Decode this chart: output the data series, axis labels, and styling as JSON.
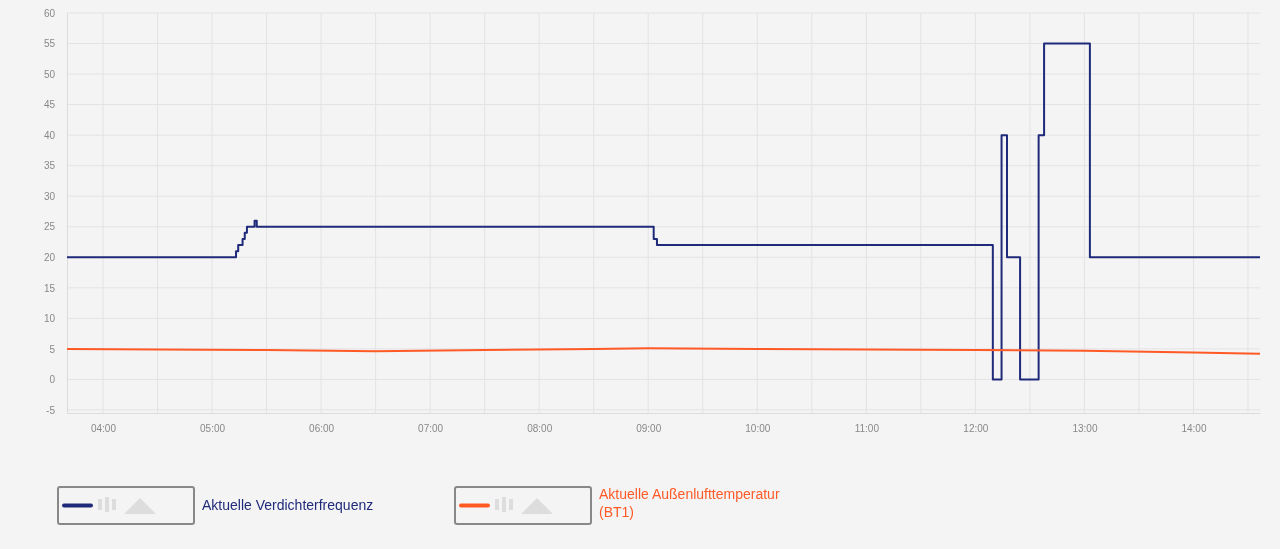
{
  "chart_data": {
    "type": "step",
    "xlim": [
      3.67,
      14.61
    ],
    "xticks": [
      {
        "value": 4,
        "label": "04:00"
      },
      {
        "value": 4.5,
        "label": null
      },
      {
        "value": 5,
        "label": "05:00"
      },
      {
        "value": 5.5,
        "label": null
      },
      {
        "value": 6,
        "label": "06:00"
      },
      {
        "value": 6.5,
        "label": null
      },
      {
        "value": 7,
        "label": "07:00"
      },
      {
        "value": 7.5,
        "label": null
      },
      {
        "value": 8,
        "label": "08:00"
      },
      {
        "value": 8.5,
        "label": null
      },
      {
        "value": 9,
        "label": "09:00"
      },
      {
        "value": 9.5,
        "label": null
      },
      {
        "value": 10,
        "label": "10:00"
      },
      {
        "value": 10.5,
        "label": null
      },
      {
        "value": 11,
        "label": "11:00"
      },
      {
        "value": 11.5,
        "label": null
      },
      {
        "value": 12,
        "label": "12:00"
      },
      {
        "value": 12.5,
        "label": null
      },
      {
        "value": 13,
        "label": "13:00"
      },
      {
        "value": 13.5,
        "label": null
      },
      {
        "value": 14,
        "label": "14:00"
      },
      {
        "value": 14.5,
        "label": null
      }
    ],
    "ylim": [
      -5.5,
      60
    ],
    "yticks": [
      -5,
      0,
      5,
      10,
      15,
      20,
      25,
      30,
      35,
      40,
      45,
      50,
      55,
      60
    ],
    "grid": true,
    "legend": "bottom left",
    "series": [
      {
        "name": "Aktuelle Verdichterfrequenz",
        "color": "#1f2a7a",
        "x": [
          3.67,
          5.22,
          5.24,
          5.28,
          5.3,
          5.32,
          5.39,
          5.41,
          9.05,
          9.08,
          12.16,
          12.24,
          12.29,
          12.41,
          12.58,
          12.63,
          13.05,
          14.61
        ],
        "values": [
          20,
          21,
          22,
          23,
          24,
          25,
          26,
          25,
          23,
          22,
          0,
          40,
          20,
          0,
          40,
          55,
          20,
          20
        ]
      },
      {
        "name": "Aktuelle Außenlufttemperatur (BT1)",
        "type": "line",
        "color": "#ff5a26",
        "x": [
          3.67,
          4.5,
          5.5,
          6.5,
          7.5,
          8.5,
          9.0,
          10.0,
          11.0,
          12.0,
          13.0,
          14.0,
          14.61
        ],
        "values": [
          5.0,
          4.9,
          4.8,
          4.6,
          4.8,
          5.0,
          5.1,
          5.0,
          4.9,
          4.8,
          4.7,
          4.4,
          4.2
        ]
      }
    ]
  }
}
